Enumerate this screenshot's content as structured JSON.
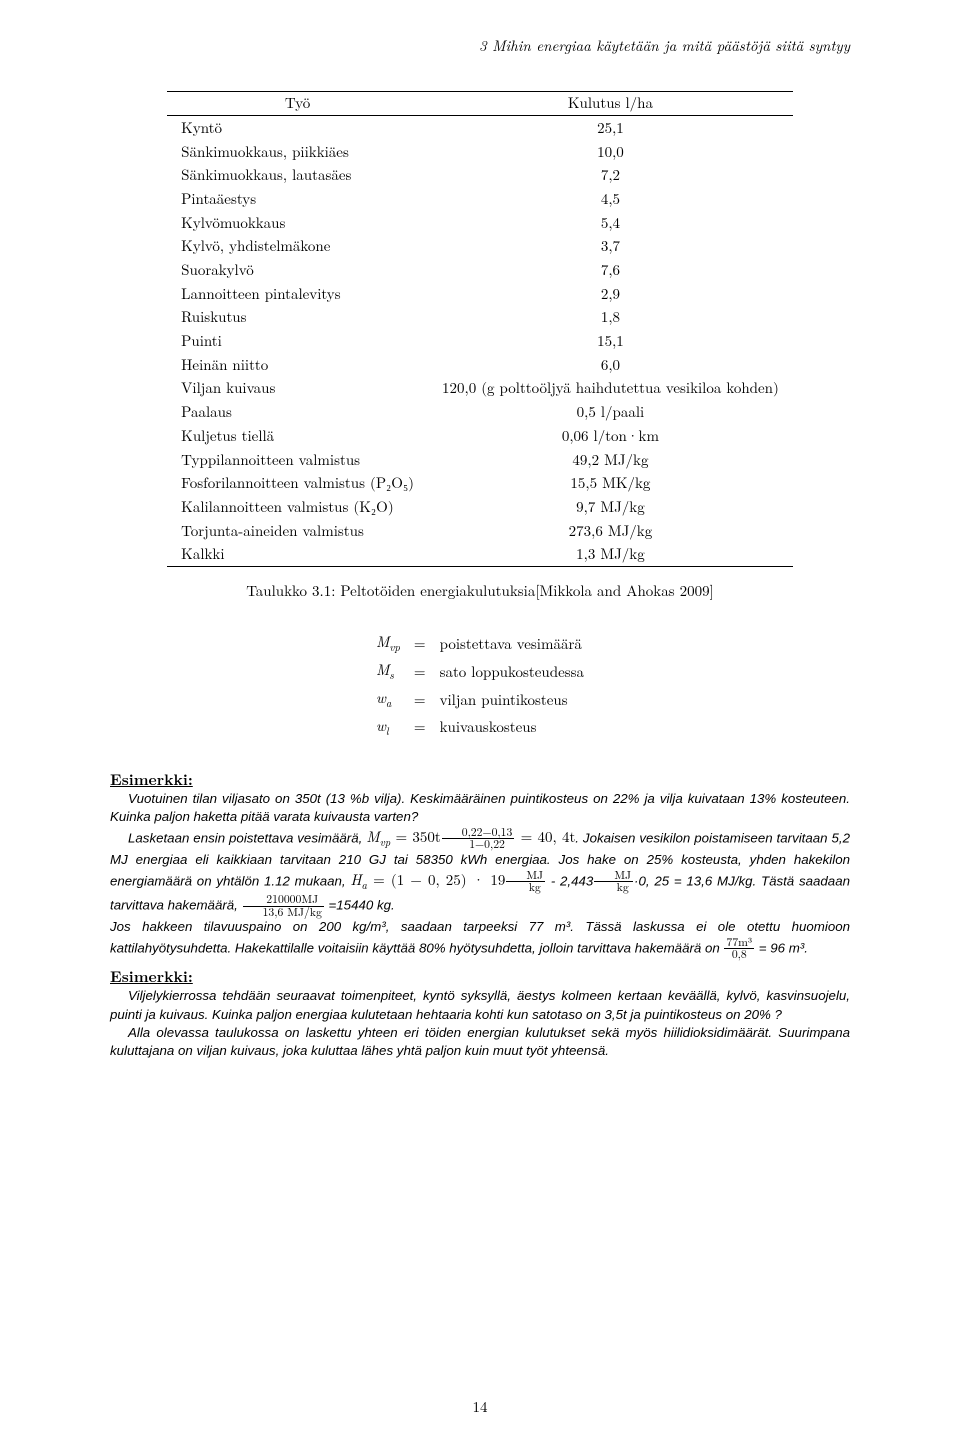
{
  "running_head": "3 Mihin energiaa käytetään ja mitä päästöjä siitä syntyy",
  "table": {
    "columns": [
      "Työ",
      "Kulutus l/ha"
    ],
    "rows": [
      [
        "Kyntö",
        "25,1"
      ],
      [
        "Sänkimuokkaus, piikkiäes",
        "10,0"
      ],
      [
        "Sänkimuokkaus, lautasäes",
        "7,2"
      ],
      [
        "Pintaäestys",
        "4,5"
      ],
      [
        "Kylvömuokkaus",
        "5,4"
      ],
      [
        "Kylvö, yhdistelmäkone",
        "3,7"
      ],
      [
        "Suorakylvö",
        "7,6"
      ],
      [
        "Lannoitteen pintalevitys",
        "2,9"
      ],
      [
        "Ruiskutus",
        "1,8"
      ],
      [
        "Puinti",
        "15,1"
      ],
      [
        "Heinän niitto",
        "6,0"
      ],
      [
        "Viljan kuivaus",
        "120,0 (g polttoöljyä haihdutettua vesikiloa kohden)"
      ],
      [
        "Paalaus",
        "0,5 l/paali"
      ],
      [
        "Kuljetus tiellä",
        "0,06 l/ton·km"
      ],
      [
        "Typpilannoitteen valmistus",
        "49,2 MJ/kg"
      ],
      [
        "Fosforilannoitteen valmistus (P₂O₅)",
        "15,5 MK/kg"
      ],
      [
        "Kalilannoitteen valmistus (K₂O)",
        "9,7 MJ/kg"
      ],
      [
        "Torjunta-aineiden valmistus",
        "273,6 MJ/kg"
      ],
      [
        "Kalkki",
        "1,3 MJ/kg"
      ]
    ]
  },
  "caption": "Taulukko 3.1: Peltotöiden energiakulutuksia[Mikkola and Ahokas 2009]",
  "defs": {
    "rows": [
      {
        "sym": "M",
        "sub": "vp",
        "desc": "poistettava vesimäärä"
      },
      {
        "sym": "M",
        "sub": "s",
        "desc": "sato loppukosteudessa"
      },
      {
        "sym": "w",
        "sub": "a",
        "desc": "viljan puintikosteus"
      },
      {
        "sym": "w",
        "sub": "l",
        "desc": "kuivauskosteus"
      }
    ]
  },
  "ex1_header": "Esimerkki:",
  "ex1_p1": "Vuotuinen tilan viljasato on 350t (13 %b vilja). Keskimääräinen puintikosteus on 22% ja vilja kuivataan 13% kosteuteen. Kuinka paljon haketta pitää varata kuivausta varten?",
  "ex1_p2a": "Lasketaan ensin poistettava vesimäärä, ",
  "ex1_p2math_pre": "M",
  "ex1_p2math_sub": "vp",
  "ex1_p2math_mid": " = 350t",
  "ex1_frac1_num": "0,22−0,13",
  "ex1_frac1_den": "1−0,22",
  "ex1_p2math_post": " = 40, 4t",
  "ex1_p2b": ". Jokaisen vesikilon poistamiseen tarvitaan 5,2 MJ energiaa eli kaikkiaan tarvitaan 210 GJ tai 58350 kWh energiaa. Jos hake on 25% kosteusta, yhden hakekilon energiamäärä on yhtälön 1.12 mukaan, ",
  "ex1_ha_pre": "H",
  "ex1_ha_sub": "a",
  "ex1_ha_mid": " = (1 − 0, 25) · 19",
  "ex1_fracMJkg_num": "MJ",
  "ex1_fracMJkg_den": "kg",
  "ex1_ha_mid2": " - 2,443",
  "ex1_ha_end": "·0, 25 = 13,6 MJ/kg. Tästä saadaan tarvittava hakemäärä, ",
  "ex1_frac2_num": "210000MJ",
  "ex1_frac2_den": "13,6 MJ/kg",
  "ex1_ha_final": " =15440 kg.",
  "ex1_p3a": "Jos hakkeen tilavuuspaino on 200 kg/m³, saadaan tarpeeksi 77 m³. Tässä laskussa ei ole otettu huomioon kattilahyötysuhdetta. Hakekattilalle voitaisiin käyttää 80% hyötysuhdetta, jolloin tarvittava hakemäärä on ",
  "ex1_frac3_num": "77m³",
  "ex1_frac3_den": "0,8",
  "ex1_p3b": " = 96 m³.",
  "ex2_header": "Esimerkki:",
  "ex2_p1": "Viljelykierrossa tehdään seuraavat toimenpiteet, kyntö syksyllä, äestys kolmeen kertaan keväällä, kylvö, kasvinsuojelu, puinti ja kuivaus. Kuinka paljon energiaa kulutetaan hehtaaria kohti kun satotaso on 3,5t ja puintikosteus on 20% ?",
  "ex2_p2": "Alla olevassa taulukossa on laskettu yhteen eri töiden energian kulutukset sekä myös hiilidioksidimäärät. Suurimpana kuluttajana on viljan kuivaus, joka kuluttaa lähes yhtä paljon kuin muut työt yhteensä.",
  "page_number": "14"
}
